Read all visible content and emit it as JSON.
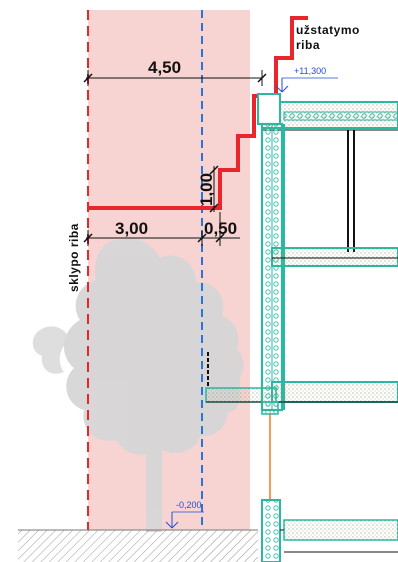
{
  "dimensions": {
    "top_width": "4,50",
    "step_height": "1,00",
    "bottom_width": "3,00",
    "offset": "0,50"
  },
  "labels": {
    "upper_limit": "užstatymo",
    "upper_limit_2": "riba",
    "plot_limit": "sklypo riba"
  },
  "levels": {
    "top": "+11,300",
    "ground": "-0,200"
  },
  "colors": {
    "zone_fill": "#f7d4d2",
    "boundary_red": "#e8262c",
    "boundary_blue": "#2a73d8",
    "wall_teal": "#2bb7a0",
    "level_blue": "#1f4fd6",
    "tree_grey": "#d6d6d6",
    "pipe_orange": "#ef7a22"
  }
}
